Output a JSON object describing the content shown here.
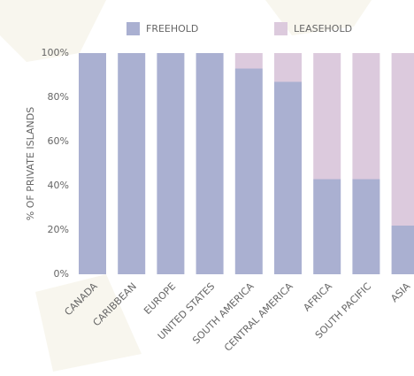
{
  "chart_data": {
    "type": "stacked_bar",
    "y_label": "% OF PRIVATE ISLANDS",
    "categories": [
      "CANADA",
      "CARIBBEAN",
      "EUROPE",
      "UNITED STATES",
      "SOUTH AMERICA",
      "CENTRAL AMERICA",
      "AFRICA",
      "SOUTH PACIFIC",
      "ASIA"
    ],
    "series": [
      {
        "name": "FREEHOLD",
        "color": "#aab0d1",
        "values": [
          100,
          100,
          100,
          100,
          93,
          87,
          43,
          43,
          22
        ]
      },
      {
        "name": "LEASEHOLD",
        "color": "#dccadd",
        "values": [
          0,
          0,
          0,
          0,
          7,
          13,
          57,
          57,
          78
        ]
      }
    ],
    "ylim": [
      0,
      100
    ],
    "yticks": [
      {
        "value": 0,
        "label": "0%"
      },
      {
        "value": 20,
        "label": "20%"
      },
      {
        "value": 40,
        "label": "40%"
      },
      {
        "value": 60,
        "label": "60%"
      },
      {
        "value": 80,
        "label": "80%"
      },
      {
        "value": 100,
        "label": "100%"
      }
    ],
    "legend": "top"
  }
}
